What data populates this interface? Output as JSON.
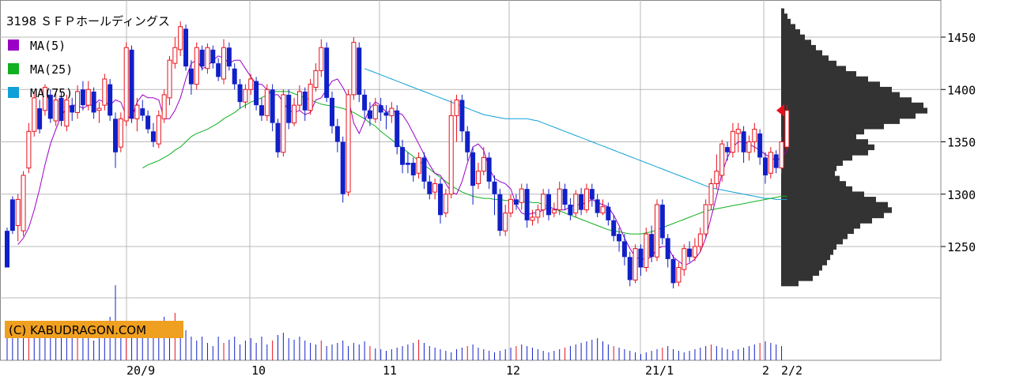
{
  "chart_data": {
    "type": "candlestick",
    "title": "3198 ＳＦＰホールディングス",
    "copyright": "(C) KABUDRAGON.COM",
    "colors": {
      "up": "#e8101a",
      "down": "#1020c8",
      "ma5": "#9b00c8",
      "ma25": "#10b020",
      "ma75": "#10a0d8",
      "profile": "#333333",
      "marker": "#e8101a",
      "grid": "#b8b8b8",
      "copyright_bg": "#f0a020"
    },
    "legend": [
      {
        "name": "MA(5)",
        "key": "ma5"
      },
      {
        "name": "MA(25)",
        "key": "ma25"
      },
      {
        "name": "MA(75)",
        "key": "ma75"
      }
    ],
    "ylim": [
      1150,
      1480
    ],
    "yticks": [
      1250,
      1300,
      1350,
      1400,
      1450
    ],
    "xlabels": [
      "20/9",
      "10",
      "11",
      "12",
      "21/1",
      "2",
      "2/2"
    ],
    "last_price": 1380,
    "candles": [
      [
        1265,
        1230,
        1268,
        1235
      ],
      [
        1295,
        1265,
        1298,
        1262
      ],
      [
        1270,
        1295,
        1300,
        1255
      ],
      [
        1265,
        1318,
        1322,
        1260
      ],
      [
        1325,
        1360,
        1368,
        1320
      ],
      [
        1360,
        1392,
        1398,
        1355
      ],
      [
        1382,
        1362,
        1390,
        1358
      ],
      [
        1380,
        1402,
        1405,
        1375
      ],
      [
        1395,
        1372,
        1400,
        1368
      ],
      [
        1370,
        1390,
        1396,
        1365
      ],
      [
        1392,
        1370,
        1398,
        1365
      ],
      [
        1365,
        1390,
        1395,
        1360
      ],
      [
        1385,
        1378,
        1392,
        1370
      ],
      [
        1378,
        1398,
        1404,
        1372
      ],
      [
        1400,
        1385,
        1408,
        1380
      ],
      [
        1385,
        1400,
        1408,
        1380
      ],
      [
        1398,
        1378,
        1402,
        1372
      ],
      [
        1380,
        1382,
        1388,
        1368
      ],
      [
        1385,
        1410,
        1415,
        1380
      ],
      [
        1405,
        1375,
        1410,
        1370
      ],
      [
        1372,
        1340,
        1378,
        1325
      ],
      [
        1345,
        1372,
        1378,
        1340
      ],
      [
        1370,
        1440,
        1445,
        1365
      ],
      [
        1438,
        1372,
        1442,
        1368
      ],
      [
        1372,
        1385,
        1392,
        1360
      ],
      [
        1382,
        1375,
        1390,
        1370
      ],
      [
        1375,
        1362,
        1380,
        1358
      ],
      [
        1360,
        1350,
        1368,
        1345
      ],
      [
        1348,
        1375,
        1380,
        1344
      ],
      [
        1372,
        1395,
        1400,
        1368
      ],
      [
        1392,
        1428,
        1432,
        1385
      ],
      [
        1425,
        1440,
        1450,
        1420
      ],
      [
        1438,
        1460,
        1465,
        1432
      ],
      [
        1458,
        1422,
        1462,
        1418
      ],
      [
        1420,
        1405,
        1428,
        1395
      ],
      [
        1405,
        1440,
        1445,
        1400
      ],
      [
        1438,
        1422,
        1442,
        1418
      ],
      [
        1420,
        1440,
        1444,
        1415
      ],
      [
        1438,
        1425,
        1442,
        1420
      ],
      [
        1425,
        1412,
        1430,
        1408
      ],
      [
        1410,
        1440,
        1448,
        1405
      ],
      [
        1440,
        1422,
        1445,
        1418
      ],
      [
        1420,
        1405,
        1425,
        1400
      ],
      [
        1405,
        1388,
        1410,
        1382
      ],
      [
        1388,
        1400,
        1405,
        1382
      ],
      [
        1400,
        1410,
        1415,
        1395
      ],
      [
        1408,
        1385,
        1412,
        1380
      ],
      [
        1385,
        1375,
        1392,
        1370
      ],
      [
        1375,
        1400,
        1405,
        1370
      ],
      [
        1400,
        1368,
        1405,
        1360
      ],
      [
        1368,
        1340,
        1372,
        1335
      ],
      [
        1340,
        1395,
        1400,
        1336
      ],
      [
        1395,
        1368,
        1400,
        1362
      ],
      [
        1368,
        1385,
        1392,
        1365
      ],
      [
        1385,
        1398,
        1404,
        1380
      ],
      [
        1398,
        1380,
        1402,
        1370
      ],
      [
        1380,
        1405,
        1410,
        1376
      ],
      [
        1402,
        1418,
        1425,
        1398
      ],
      [
        1418,
        1440,
        1448,
        1412
      ],
      [
        1440,
        1392,
        1445,
        1388
      ],
      [
        1392,
        1365,
        1398,
        1358
      ],
      [
        1365,
        1350,
        1372,
        1340
      ],
      [
        1350,
        1300,
        1355,
        1292
      ],
      [
        1302,
        1395,
        1400,
        1298
      ],
      [
        1395,
        1445,
        1450,
        1390
      ],
      [
        1440,
        1395,
        1445,
        1388
      ],
      [
        1395,
        1380,
        1400,
        1372
      ],
      [
        1380,
        1372,
        1388,
        1365
      ],
      [
        1372,
        1385,
        1392,
        1368
      ],
      [
        1385,
        1378,
        1392,
        1370
      ],
      [
        1378,
        1375,
        1385,
        1362
      ],
      [
        1375,
        1382,
        1388,
        1368
      ],
      [
        1380,
        1345,
        1385,
        1338
      ],
      [
        1345,
        1328,
        1352,
        1320
      ],
      [
        1330,
        1328,
        1340,
        1320
      ],
      [
        1330,
        1318,
        1335,
        1312
      ],
      [
        1320,
        1335,
        1340,
        1315
      ],
      [
        1335,
        1312,
        1340,
        1305
      ],
      [
        1312,
        1300,
        1318,
        1295
      ],
      [
        1302,
        1310,
        1315,
        1295
      ],
      [
        1310,
        1280,
        1315,
        1272
      ],
      [
        1282,
        1300,
        1305,
        1278
      ],
      [
        1300,
        1375,
        1390,
        1296
      ],
      [
        1375,
        1390,
        1395,
        1350
      ],
      [
        1390,
        1360,
        1395,
        1350
      ],
      [
        1360,
        1340,
        1365,
        1332
      ],
      [
        1340,
        1308,
        1345,
        1290
      ],
      [
        1310,
        1322,
        1330,
        1305
      ],
      [
        1322,
        1335,
        1345,
        1318
      ],
      [
        1335,
        1312,
        1340,
        1305
      ],
      [
        1312,
        1300,
        1318,
        1280
      ],
      [
        1300,
        1265,
        1305,
        1260
      ],
      [
        1265,
        1282,
        1290,
        1260
      ],
      [
        1282,
        1295,
        1300,
        1278
      ],
      [
        1295,
        1290,
        1300,
        1285
      ],
      [
        1292,
        1305,
        1310,
        1285
      ],
      [
        1305,
        1275,
        1310,
        1268
      ],
      [
        1275,
        1278,
        1285,
        1270
      ],
      [
        1278,
        1285,
        1290,
        1272
      ],
      [
        1285,
        1300,
        1305,
        1278
      ],
      [
        1300,
        1280,
        1305,
        1275
      ],
      [
        1282,
        1285,
        1292,
        1278
      ],
      [
        1285,
        1305,
        1312,
        1280
      ],
      [
        1305,
        1290,
        1310,
        1285
      ],
      [
        1290,
        1280,
        1296,
        1275
      ],
      [
        1282,
        1300,
        1304,
        1278
      ],
      [
        1300,
        1285,
        1306,
        1280
      ],
      [
        1285,
        1305,
        1310,
        1282
      ],
      [
        1305,
        1295,
        1310,
        1288
      ],
      [
        1295,
        1282,
        1300,
        1278
      ],
      [
        1282,
        1288,
        1295,
        1280
      ],
      [
        1288,
        1275,
        1292,
        1270
      ],
      [
        1275,
        1260,
        1280,
        1255
      ],
      [
        1262,
        1255,
        1268,
        1245
      ],
      [
        1255,
        1240,
        1262,
        1232
      ],
      [
        1240,
        1218,
        1245,
        1212
      ],
      [
        1218,
        1248,
        1252,
        1215
      ],
      [
        1248,
        1230,
        1252,
        1222
      ],
      [
        1230,
        1262,
        1268,
        1226
      ],
      [
        1262,
        1240,
        1270,
        1235
      ],
      [
        1240,
        1290,
        1295,
        1236
      ],
      [
        1290,
        1258,
        1295,
        1252
      ],
      [
        1258,
        1238,
        1262,
        1230
      ],
      [
        1238,
        1215,
        1242,
        1210
      ],
      [
        1216,
        1230,
        1235,
        1212
      ],
      [
        1228,
        1248,
        1252,
        1222
      ],
      [
        1248,
        1240,
        1255,
        1235
      ],
      [
        1240,
        1250,
        1258,
        1236
      ],
      [
        1250,
        1262,
        1268,
        1245
      ],
      [
        1262,
        1290,
        1295,
        1258
      ],
      [
        1290,
        1310,
        1315,
        1285
      ],
      [
        1310,
        1322,
        1338,
        1305
      ],
      [
        1318,
        1348,
        1352,
        1312
      ],
      [
        1345,
        1340,
        1350,
        1332
      ],
      [
        1340,
        1360,
        1368,
        1335
      ],
      [
        1358,
        1362,
        1368,
        1340
      ],
      [
        1360,
        1340,
        1365,
        1330
      ],
      [
        1340,
        1350,
        1356,
        1332
      ],
      [
        1350,
        1362,
        1368,
        1340
      ],
      [
        1358,
        1335,
        1362,
        1328
      ],
      [
        1335,
        1318,
        1340,
        1310
      ],
      [
        1320,
        1340,
        1345,
        1315
      ],
      [
        1338,
        1325,
        1342,
        1320
      ],
      [
        1325,
        1350,
        1355,
        1320
      ],
      [
        1345,
        1380,
        1385,
        1342
      ]
    ],
    "candles_note": "each candle: [open, close, high, low]",
    "ma5": [
      1252,
      1258,
      1268,
      1285,
      1305,
      1328,
      1348,
      1362,
      1375,
      1382,
      1385,
      1385,
      1382,
      1385,
      1385,
      1390,
      1388,
      1385,
      1390,
      1388,
      1375,
      1372,
      1388,
      1395,
      1392,
      1392,
      1390,
      1372,
      1372,
      1380,
      1392,
      1410,
      1425,
      1428,
      1420,
      1422,
      1428,
      1432,
      1430,
      1425,
      1428,
      1428,
      1420,
      1412,
      1405,
      1405,
      1400,
      1395,
      1395,
      1388,
      1380,
      1378,
      1380,
      1376,
      1378,
      1390,
      1392,
      1400,
      1408,
      1410,
      1402,
      1392,
      1368,
      1358,
      1370,
      1382,
      1388,
      1385,
      1378,
      1380,
      1378,
      1376,
      1368,
      1358,
      1348,
      1338,
      1328,
      1320,
      1318,
      1310,
      1302,
      1300,
      1312,
      1330,
      1345,
      1348,
      1342,
      1325,
      1315,
      1312,
      1310,
      1305,
      1290,
      1282,
      1280,
      1282,
      1282,
      1285,
      1288,
      1286,
      1285,
      1285,
      1288,
      1290,
      1290,
      1292,
      1295,
      1292,
      1290,
      1288,
      1280,
      1270,
      1258,
      1248,
      1240,
      1238,
      1238,
      1240,
      1248,
      1250,
      1250,
      1240,
      1236,
      1232,
      1234,
      1238,
      1245,
      1258,
      1278,
      1298,
      1320,
      1335,
      1345,
      1350,
      1350,
      1348,
      1345,
      1342,
      1338,
      1335,
      1332,
      1335,
      1342
    ],
    "ma25": [
      1325,
      1328,
      1330,
      1332,
      1335,
      1338,
      1342,
      1345,
      1350,
      1355,
      1358,
      1360,
      1362,
      1365,
      1368,
      1372,
      1375,
      1378,
      1382,
      1385,
      1388,
      1390,
      1392,
      1395,
      1398,
      1398,
      1398,
      1398,
      1396,
      1394,
      1392,
      1390,
      1388,
      1386,
      1385,
      1384,
      1383,
      1382,
      1380,
      1378,
      1375,
      1372,
      1368,
      1365,
      1360,
      1356,
      1352,
      1348,
      1344,
      1340,
      1336,
      1332,
      1328,
      1324,
      1320,
      1316,
      1312,
      1308,
      1305,
      1302,
      1300,
      1298,
      1297,
      1296,
      1296,
      1295,
      1295,
      1294,
      1294,
      1293,
      1293,
      1293,
      1292,
      1292,
      1290,
      1288,
      1286,
      1284,
      1282,
      1280,
      1278,
      1276,
      1274,
      1272,
      1270,
      1268,
      1266,
      1265,
      1264,
      1263,
      1262,
      1262,
      1262,
      1263,
      1264,
      1266,
      1268,
      1270,
      1272,
      1274,
      1276,
      1278,
      1280,
      1282,
      1284,
      1285,
      1286,
      1287,
      1288,
      1289,
      1290,
      1291,
      1292,
      1293,
      1294,
      1295,
      1296,
      1297,
      1298,
      1298
    ],
    "ma75": [
      1420,
      1418,
      1416,
      1414,
      1412,
      1410,
      1408,
      1406,
      1404,
      1402,
      1400,
      1398,
      1396,
      1394,
      1392,
      1390,
      1388,
      1386,
      1384,
      1382,
      1380,
      1378,
      1376,
      1375,
      1374,
      1373,
      1372,
      1372,
      1372,
      1372,
      1372,
      1371,
      1370,
      1368,
      1366,
      1364,
      1362,
      1360,
      1358,
      1356,
      1354,
      1352,
      1350,
      1348,
      1346,
      1344,
      1342,
      1340,
      1338,
      1336,
      1334,
      1332,
      1330,
      1328,
      1326,
      1324,
      1322,
      1320,
      1318,
      1316,
      1314,
      1312,
      1310,
      1308,
      1306,
      1305,
      1304,
      1303,
      1302,
      1301,
      1300,
      1299,
      1298,
      1297,
      1296,
      1296,
      1295,
      1295,
      1295
    ],
    "volume": [
      42,
      30,
      40,
      28,
      35,
      38,
      30,
      45,
      48,
      40,
      30,
      40,
      35,
      42,
      30,
      28,
      25,
      32,
      40,
      55,
      95,
      35,
      30,
      48,
      30,
      40,
      32,
      35,
      30,
      55,
      40,
      60,
      48,
      38,
      30,
      25,
      30,
      22,
      18,
      30,
      22,
      26,
      30,
      20,
      25,
      28,
      22,
      30,
      20,
      25,
      32,
      35,
      28,
      26,
      30,
      25,
      22,
      20,
      25,
      18,
      20,
      22,
      25,
      18,
      22,
      20,
      24,
      18,
      15,
      14,
      12,
      14,
      16,
      18,
      20,
      22,
      26,
      22,
      18,
      16,
      14,
      12,
      10,
      14,
      16,
      18,
      20,
      16,
      14,
      12,
      10,
      12,
      14,
      16,
      18,
      20,
      18,
      16,
      14,
      12,
      10,
      12,
      14,
      16,
      18,
      20,
      22,
      24,
      26,
      28,
      24,
      20,
      18,
      16,
      14,
      12,
      10,
      8,
      10,
      12,
      14,
      16,
      18,
      14,
      12,
      10,
      12,
      14,
      16,
      18,
      20,
      18,
      16,
      14,
      12,
      14,
      16,
      18,
      20,
      22,
      24,
      22,
      20,
      18
    ],
    "volume_note": "relative volume bar heights (no axis shown)",
    "profile": [
      [
        1215,
        22
      ],
      [
        1220,
        40
      ],
      [
        1225,
        48
      ],
      [
        1230,
        52
      ],
      [
        1235,
        58
      ],
      [
        1240,
        62
      ],
      [
        1245,
        66
      ],
      [
        1250,
        70
      ],
      [
        1255,
        78
      ],
      [
        1260,
        84
      ],
      [
        1265,
        92
      ],
      [
        1270,
        100
      ],
      [
        1275,
        115
      ],
      [
        1280,
        130
      ],
      [
        1285,
        140
      ],
      [
        1290,
        135
      ],
      [
        1295,
        120
      ],
      [
        1300,
        105
      ],
      [
        1305,
        90
      ],
      [
        1310,
        82
      ],
      [
        1315,
        74
      ],
      [
        1320,
        68
      ],
      [
        1325,
        70
      ],
      [
        1330,
        78
      ],
      [
        1335,
        90
      ],
      [
        1340,
        110
      ],
      [
        1345,
        118
      ],
      [
        1350,
        110
      ],
      [
        1355,
        95
      ],
      [
        1360,
        105
      ],
      [
        1365,
        130
      ],
      [
        1370,
        150
      ],
      [
        1375,
        170
      ],
      [
        1380,
        185
      ],
      [
        1385,
        180
      ],
      [
        1390,
        165
      ],
      [
        1395,
        150
      ],
      [
        1400,
        140
      ],
      [
        1405,
        125
      ],
      [
        1410,
        110
      ],
      [
        1415,
        95
      ],
      [
        1420,
        82
      ],
      [
        1425,
        70
      ],
      [
        1430,
        60
      ],
      [
        1435,
        52
      ],
      [
        1440,
        44
      ],
      [
        1445,
        38
      ],
      [
        1450,
        30
      ],
      [
        1455,
        24
      ],
      [
        1460,
        18
      ],
      [
        1465,
        12
      ],
      [
        1470,
        8
      ],
      [
        1475,
        4
      ]
    ],
    "profile_note": "[price, relative width] of price-by-volume histogram"
  }
}
